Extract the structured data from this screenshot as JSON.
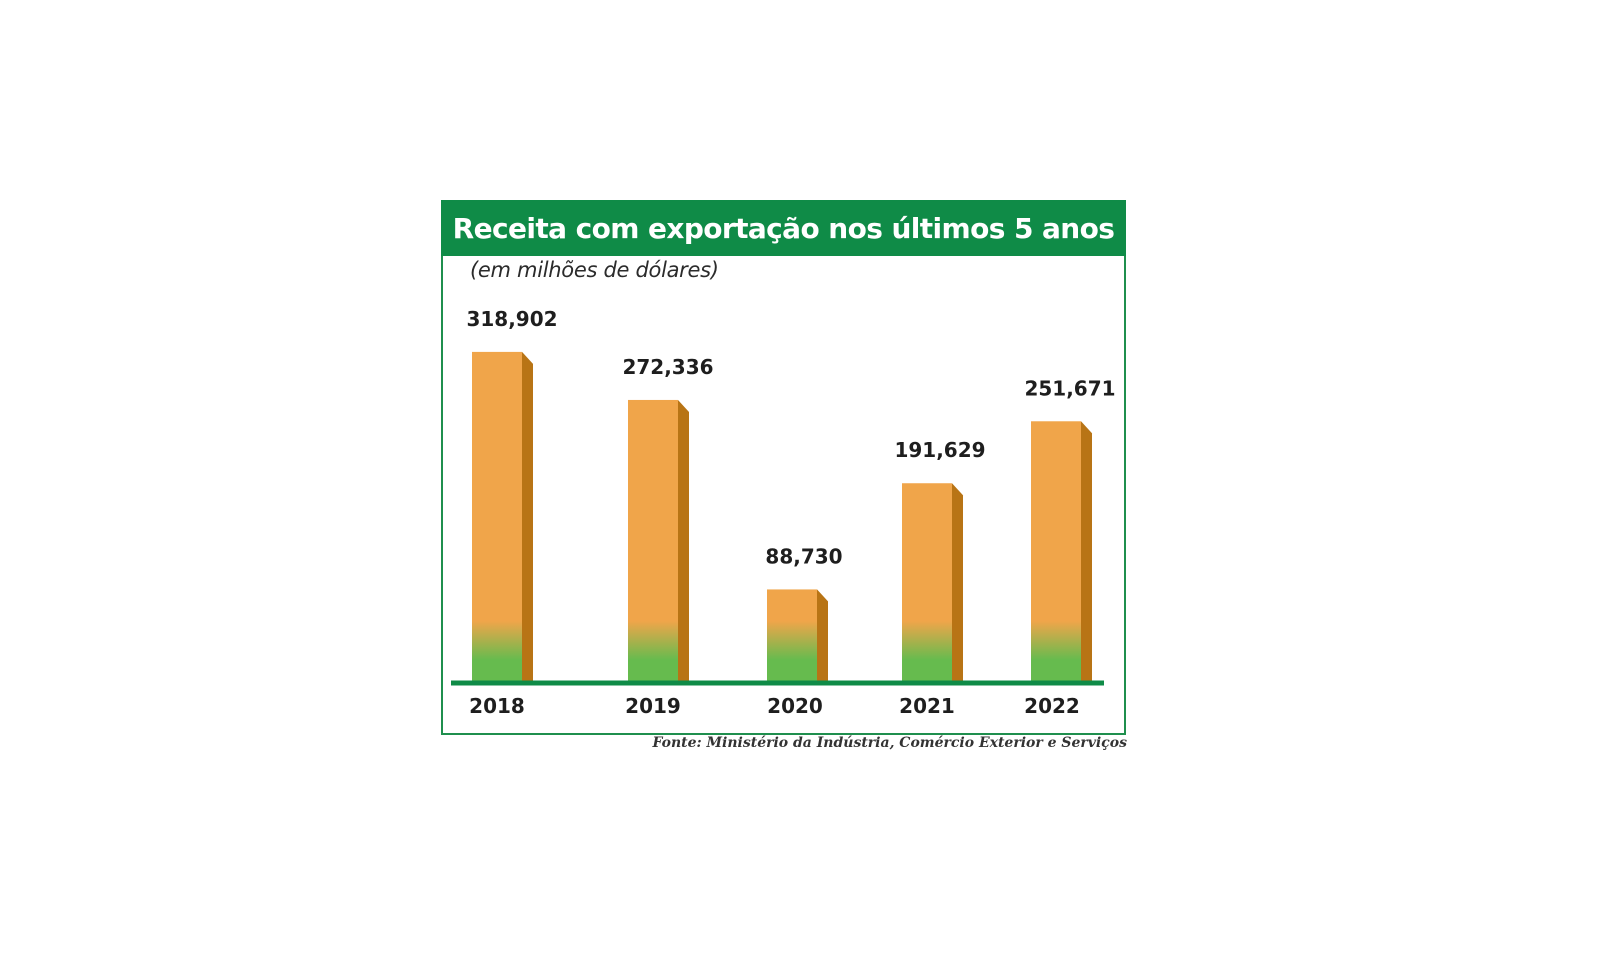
{
  "chart_data": {
    "type": "bar",
    "title": "Receita com exportação nos últimos 5 anos",
    "subtitle": "(em milhões de dólares)",
    "categories": [
      "2018",
      "2019",
      "2020",
      "2021",
      "2022"
    ],
    "values": [
      318.902,
      272.336,
      88.73,
      191.629,
      251.671
    ],
    "value_labels": [
      "318,902",
      "272,336",
      "88,730",
      "191,629",
      "251,671"
    ],
    "xlabel": "",
    "ylabel": "",
    "ylim": [
      0,
      340
    ],
    "grid": false,
    "colors": {
      "bar_top": "#f0a54a",
      "bar_bottom": "#66bb4e",
      "bar_side": "#b87415",
      "header": "#0f8b47",
      "baseline": "#0f8b47"
    },
    "source": "Fonte: Ministério da Indústria, Comércio Exterior e Serviços"
  }
}
